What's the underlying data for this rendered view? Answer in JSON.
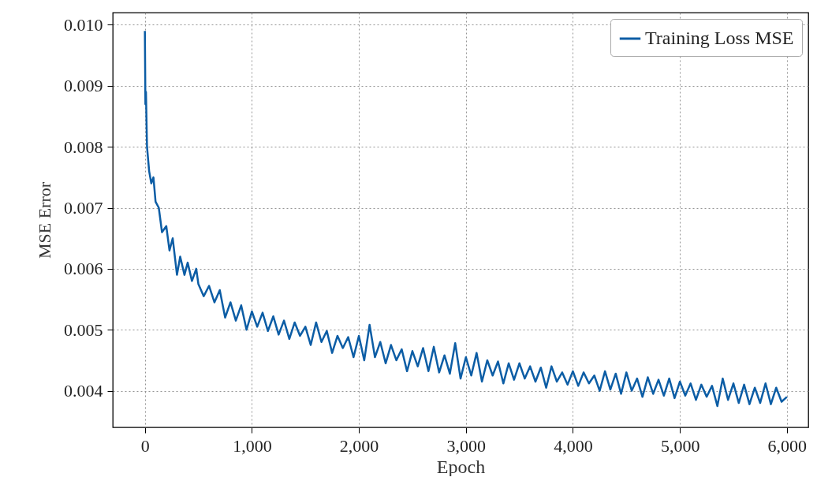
{
  "chart_data": {
    "type": "line",
    "xlabel": "Epoch",
    "ylabel": "MSE Error",
    "legend": "top right",
    "grid": true,
    "line_style": "solid",
    "xlim": [
      -300,
      6200
    ],
    "ylim": [
      0.0034,
      0.0102
    ],
    "xticks": [
      0,
      {
        "value": 1000,
        "label": "1,000"
      },
      {
        "value": 2000,
        "label": "2,000"
      },
      {
        "value": 3000,
        "label": "3,000"
      },
      {
        "value": 4000,
        "label": "4,000"
      },
      {
        "value": 5000,
        "label": "5,000"
      },
      {
        "value": 6000,
        "label": "6,000"
      }
    ],
    "yticks": [
      0.004,
      0.005,
      0.006,
      0.007,
      0.008,
      0.009,
      {
        "value": 0.01,
        "label": "0.010"
      }
    ],
    "x": [
      0,
      5,
      10,
      20,
      40,
      60,
      80,
      100,
      130,
      160,
      200,
      230,
      260,
      300,
      330,
      370,
      400,
      440,
      480,
      500,
      550,
      600,
      650,
      700,
      750,
      800,
      850,
      900,
      950,
      1000,
      1050,
      1100,
      1150,
      1200,
      1250,
      1300,
      1350,
      1400,
      1450,
      1500,
      1550,
      1600,
      1650,
      1700,
      1750,
      1800,
      1850,
      1900,
      1950,
      2000,
      2050,
      2100,
      2150,
      2200,
      2250,
      2300,
      2350,
      2400,
      2450,
      2500,
      2550,
      2600,
      2650,
      2700,
      2750,
      2800,
      2850,
      2900,
      2950,
      3000,
      3050,
      3100,
      3150,
      3200,
      3250,
      3300,
      3350,
      3400,
      3450,
      3500,
      3550,
      3600,
      3650,
      3700,
      3750,
      3800,
      3850,
      3900,
      3950,
      4000,
      4050,
      4100,
      4150,
      4200,
      4250,
      4300,
      4350,
      4400,
      4450,
      4500,
      4550,
      4600,
      4650,
      4700,
      4750,
      4800,
      4850,
      4900,
      4950,
      5000,
      5050,
      5100,
      5150,
      5200,
      5250,
      5300,
      5350,
      5400,
      5450,
      5500,
      5550,
      5600,
      5650,
      5700,
      5750,
      5800,
      5850,
      5900,
      5950,
      6000
    ],
    "series": [
      {
        "name": "Training Loss MSE",
        "color": "#0c5da5",
        "values": [
          0.0099,
          0.0087,
          0.0089,
          0.008,
          0.0076,
          0.0074,
          0.0075,
          0.0071,
          0.007,
          0.0066,
          0.0067,
          0.0063,
          0.0065,
          0.0059,
          0.0062,
          0.0059,
          0.0061,
          0.0058,
          0.006,
          0.00575,
          0.00555,
          0.00572,
          0.00545,
          0.00565,
          0.0052,
          0.00545,
          0.00515,
          0.0054,
          0.005,
          0.0053,
          0.00505,
          0.00528,
          0.00498,
          0.00522,
          0.00492,
          0.00515,
          0.00485,
          0.00512,
          0.0049,
          0.00505,
          0.00475,
          0.00512,
          0.0048,
          0.00498,
          0.00462,
          0.0049,
          0.0047,
          0.00488,
          0.00455,
          0.0049,
          0.0045,
          0.00508,
          0.00455,
          0.0048,
          0.00445,
          0.00475,
          0.0045,
          0.00468,
          0.00432,
          0.00465,
          0.0044,
          0.0047,
          0.00432,
          0.00472,
          0.0043,
          0.00458,
          0.00428,
          0.00478,
          0.0042,
          0.00455,
          0.00425,
          0.00462,
          0.00415,
          0.0045,
          0.00425,
          0.00448,
          0.00412,
          0.00445,
          0.00418,
          0.00445,
          0.0042,
          0.0044,
          0.00415,
          0.00438,
          0.00405,
          0.0044,
          0.00415,
          0.0043,
          0.0041,
          0.00432,
          0.00408,
          0.0043,
          0.00412,
          0.00425,
          0.004,
          0.00432,
          0.00402,
          0.00428,
          0.00395,
          0.0043,
          0.004,
          0.0042,
          0.0039,
          0.00422,
          0.00395,
          0.00418,
          0.00392,
          0.0042,
          0.00388,
          0.00415,
          0.00392,
          0.00412,
          0.00385,
          0.0041,
          0.0039,
          0.00408,
          0.00375,
          0.0042,
          0.00385,
          0.00412,
          0.0038,
          0.0041,
          0.00378,
          0.00405,
          0.0038,
          0.00412,
          0.00378,
          0.00405,
          0.00382,
          0.0039
        ]
      }
    ]
  }
}
